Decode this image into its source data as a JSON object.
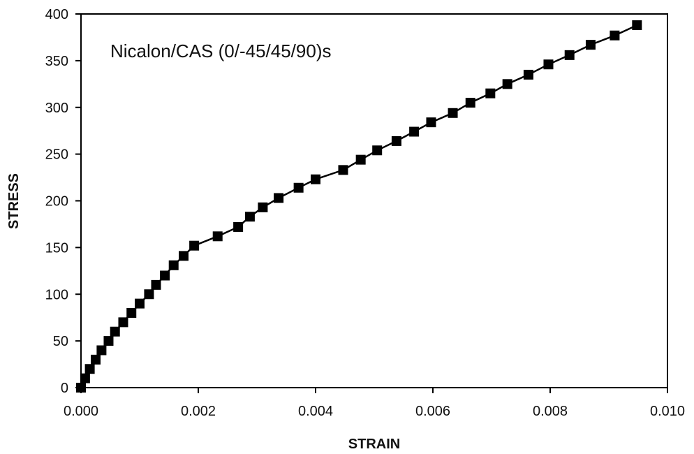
{
  "chart_data": {
    "type": "line",
    "title": "",
    "annotation": "Nicalon/CAS  (0/-45/45/90)s",
    "xlabel": "STRAIN",
    "ylabel": "STRESS",
    "xlim": [
      0,
      0.01
    ],
    "ylim": [
      0,
      400
    ],
    "x_ticks": [
      "0.000",
      "0.002",
      "0.004",
      "0.006",
      "0.008",
      "0.010"
    ],
    "y_ticks": [
      "0",
      "50",
      "100",
      "150",
      "200",
      "250",
      "300",
      "350",
      "400"
    ],
    "grid": false,
    "legend": "none",
    "series": [
      {
        "marker": "square",
        "color": "#000000",
        "x": [
          0.0,
          7e-05,
          0.00015,
          0.00025,
          0.00035,
          0.00047,
          0.00058,
          0.00072,
          0.00086,
          0.001,
          0.00116,
          0.00128,
          0.00143,
          0.00158,
          0.00175,
          0.00193,
          0.00233,
          0.00268,
          0.00288,
          0.0031,
          0.00337,
          0.00371,
          0.004,
          0.00447,
          0.00477,
          0.00505,
          0.00538,
          0.00568,
          0.00597,
          0.00634,
          0.00664,
          0.00698,
          0.00727,
          0.00763,
          0.00797,
          0.00833,
          0.00869,
          0.0091,
          0.00948
        ],
        "y": [
          0,
          10,
          20,
          30,
          40,
          50,
          60,
          70,
          80,
          90,
          100,
          110,
          120,
          131,
          141,
          152,
          162,
          172,
          183,
          193,
          203,
          214,
          223,
          233,
          244,
          254,
          264,
          274,
          284,
          294,
          305,
          315,
          325,
          335,
          346,
          356,
          367,
          377,
          388
        ]
      }
    ]
  }
}
